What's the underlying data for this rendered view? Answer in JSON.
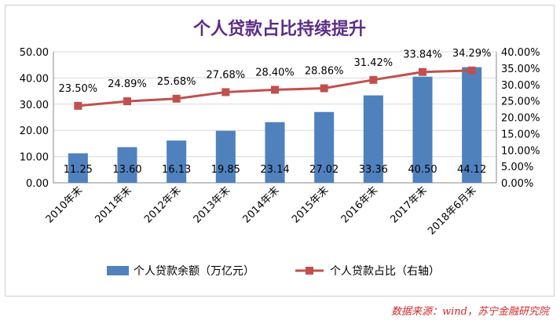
{
  "chart_data": {
    "type": "bar",
    "title": "个人贷款占比持续提升",
    "categories": [
      "2010年末",
      "2011年末",
      "2012年末",
      "2013年末",
      "2014年末",
      "2015年末",
      "2016年末",
      "2017年末",
      "2018年6月末"
    ],
    "series": [
      {
        "name": "个人贷款余额（万亿元）",
        "type": "bar",
        "axis": "left",
        "color": "#4f81bd",
        "values": [
          11.25,
          13.6,
          16.13,
          19.85,
          23.14,
          27.02,
          33.36,
          40.5,
          44.12
        ],
        "labels": [
          "11.25",
          "13.60",
          "16.13",
          "19.85",
          "23.14",
          "27.02",
          "33.36",
          "40.50",
          "44.12"
        ]
      },
      {
        "name": "个人贷款占比（右轴）",
        "type": "line",
        "axis": "right",
        "color": "#c0504d",
        "values": [
          23.5,
          24.89,
          25.68,
          27.68,
          28.4,
          28.86,
          31.42,
          33.84,
          34.29
        ],
        "labels": [
          "23.50%",
          "24.89%",
          "25.68%",
          "27.68%",
          "28.40%",
          "28.86%",
          "31.42%",
          "33.84%",
          "34.29%"
        ]
      }
    ],
    "y_left": {
      "ylim": [
        0,
        50
      ],
      "ticks": [
        0,
        10,
        20,
        30,
        40,
        50
      ],
      "tick_labels": [
        "0.00",
        "10.00",
        "20.00",
        "30.00",
        "40.00",
        "50.00"
      ]
    },
    "y_right": {
      "ylim": [
        0,
        40
      ],
      "ticks": [
        0,
        5,
        10,
        15,
        20,
        25,
        30,
        35,
        40
      ],
      "tick_labels": [
        "0.00%",
        "5.00%",
        "10.00%",
        "15.00%",
        "20.00%",
        "25.00%",
        "30.00%",
        "35.00%",
        "40.00%"
      ]
    },
    "grid": true,
    "legend": "bottom",
    "title_color": "#5b2c87"
  },
  "source": "数据来源：wind，苏宁金融研究院"
}
